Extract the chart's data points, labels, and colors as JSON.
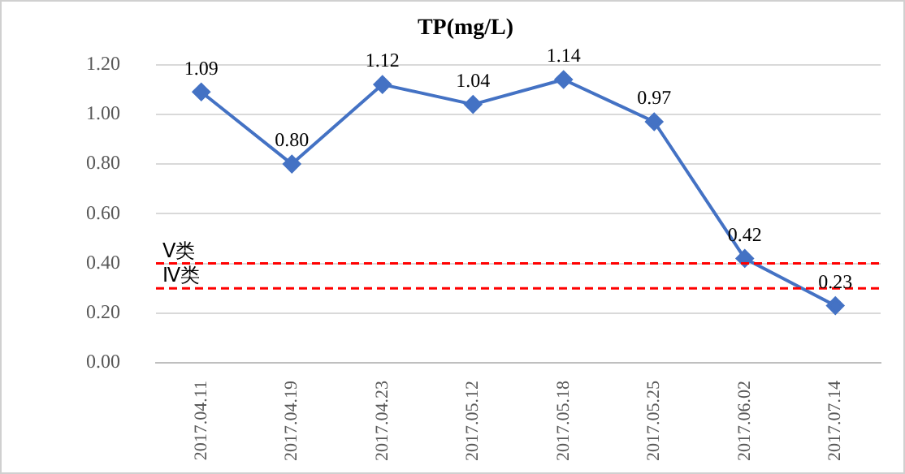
{
  "chart_data": {
    "type": "line",
    "title": "TP(mg/L)",
    "categories": [
      "2017.04.11",
      "2017.04.19",
      "2017.04.23",
      "2017.05.12",
      "2017.05.18",
      "2017.05.25",
      "2017.06.02",
      "2017.07.14"
    ],
    "series": [
      {
        "color": "#4472c4",
        "values": [
          1.09,
          0.8,
          1.12,
          1.04,
          1.14,
          0.97,
          0.42,
          0.23
        ]
      }
    ],
    "ylim": [
      0,
      1.2
    ],
    "yticks": [
      {
        "value": 0,
        "label": "0.00"
      },
      {
        "value": 0.2,
        "label": "0.20"
      },
      {
        "value": 0.4,
        "label": "0.40"
      },
      {
        "value": 0.6,
        "label": "0.60"
      },
      {
        "value": 0.8,
        "label": "0.80"
      },
      {
        "value": 1,
        "label": "1.00"
      },
      {
        "value": 1.2,
        "label": "1.20"
      }
    ],
    "ref_lines": [
      {
        "axis": "y",
        "value": 0.4,
        "label": "Ⅴ类",
        "color": "#ff0000",
        "line_style": "dashed"
      },
      {
        "axis": "y",
        "value": 0.3,
        "label": "Ⅳ类",
        "color": "#ff0000",
        "line_style": "dashed"
      }
    ],
    "value_labels": [
      "1.09",
      "0.80",
      "1.12",
      "1.04",
      "1.14",
      "0.97",
      "0.42",
      "0.23"
    ],
    "grid": "y",
    "legend": false,
    "marker": "diamond",
    "line_style": "solid"
  }
}
